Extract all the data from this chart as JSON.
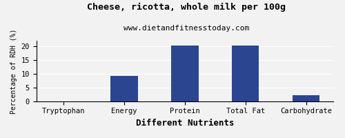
{
  "title": "Cheese, ricotta, whole milk per 100g",
  "subtitle": "www.dietandfitnesstoday.com",
  "xlabel": "Different Nutrients",
  "ylabel": "Percentage of RDH (%)",
  "categories": [
    "Tryptophan",
    "Energy",
    "Protein",
    "Total Fat",
    "Carbohydrate"
  ],
  "values": [
    0,
    9.2,
    20.2,
    20.3,
    2.1
  ],
  "bar_color": "#2b4590",
  "ylim": [
    0,
    22
  ],
  "yticks": [
    0,
    5,
    10,
    15,
    20
  ],
  "background_color": "#f2f2f2",
  "title_fontsize": 9.5,
  "subtitle_fontsize": 8,
  "xlabel_fontsize": 9,
  "ylabel_fontsize": 7,
  "tick_fontsize": 7.5,
  "bar_width": 0.45
}
